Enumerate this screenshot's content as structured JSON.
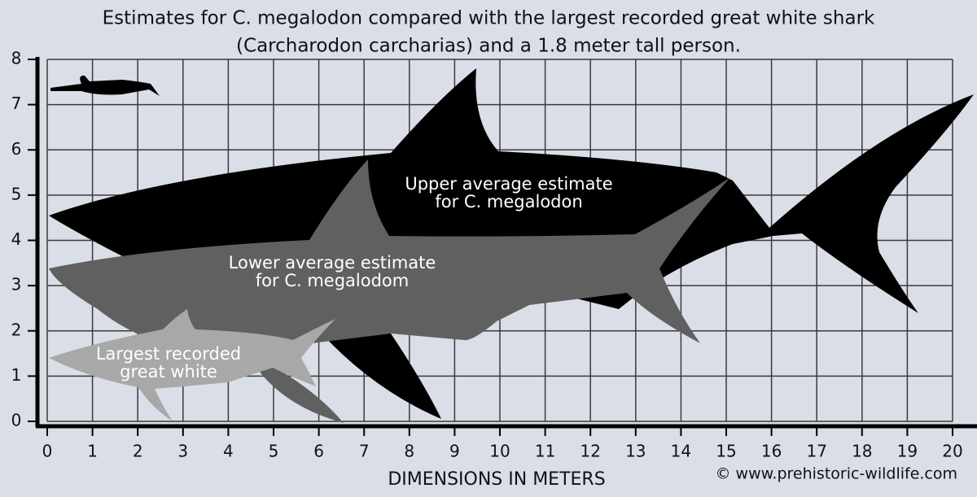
{
  "title": {
    "line1": "Estimates for C. megalodon compared with the largest recorded great white shark",
    "line2": "(Carcharodon carcharias) and a 1.8 meter tall person."
  },
  "axes": {
    "xlim": [
      0,
      20
    ],
    "xticks": [
      0,
      1,
      2,
      3,
      4,
      5,
      6,
      7,
      8,
      9,
      10,
      11,
      12,
      13,
      14,
      15,
      16,
      17,
      18,
      19,
      20
    ],
    "ylim": [
      0,
      8
    ],
    "yticks": [
      0,
      1,
      2,
      3,
      4,
      5,
      6,
      7,
      8
    ],
    "x_label": "DIMENSIONS IN METERS"
  },
  "labels": {
    "upper": [
      "Upper average estimate",
      "for C. megalodon"
    ],
    "lower": [
      "Lower average estimate",
      "for C. megalodom"
    ],
    "great_white": [
      "Largest recorded",
      "great white"
    ]
  },
  "credit": "© www.prehistoric-wildlife.com"
}
